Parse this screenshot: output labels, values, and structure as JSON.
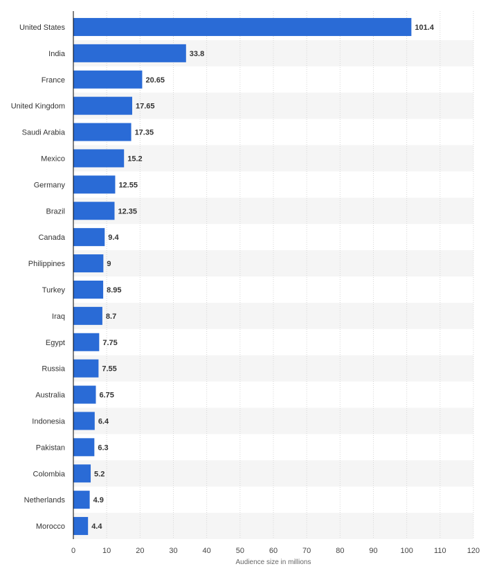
{
  "chart_data": {
    "type": "bar",
    "orientation": "horizontal",
    "categories": [
      "United States",
      "India",
      "France",
      "United Kingdom",
      "Saudi Arabia",
      "Mexico",
      "Germany",
      "Brazil",
      "Canada",
      "Philippines",
      "Turkey",
      "Iraq",
      "Egypt",
      "Russia",
      "Australia",
      "Indonesia",
      "Pakistan",
      "Colombia",
      "Netherlands",
      "Morocco"
    ],
    "values": [
      101.4,
      33.8,
      20.65,
      17.65,
      17.35,
      15.2,
      12.55,
      12.35,
      9.4,
      9,
      8.95,
      8.7,
      7.75,
      7.55,
      6.75,
      6.4,
      6.3,
      5.2,
      4.9,
      4.4
    ],
    "value_labels": [
      "101.4",
      "33.8",
      "20.65",
      "17.65",
      "17.35",
      "15.2",
      "12.55",
      "12.35",
      "9.4",
      "9",
      "8.95",
      "8.7",
      "7.75",
      "7.55",
      "6.75",
      "6.4",
      "6.3",
      "5.2",
      "4.9",
      "4.4"
    ],
    "xlabel": "Audience size in millions",
    "xlim": [
      0,
      120
    ],
    "xticks": [
      0,
      10,
      20,
      30,
      40,
      50,
      60,
      70,
      80,
      90,
      100,
      110,
      120
    ],
    "grid": true,
    "bar_color": "#2a6bd6"
  }
}
